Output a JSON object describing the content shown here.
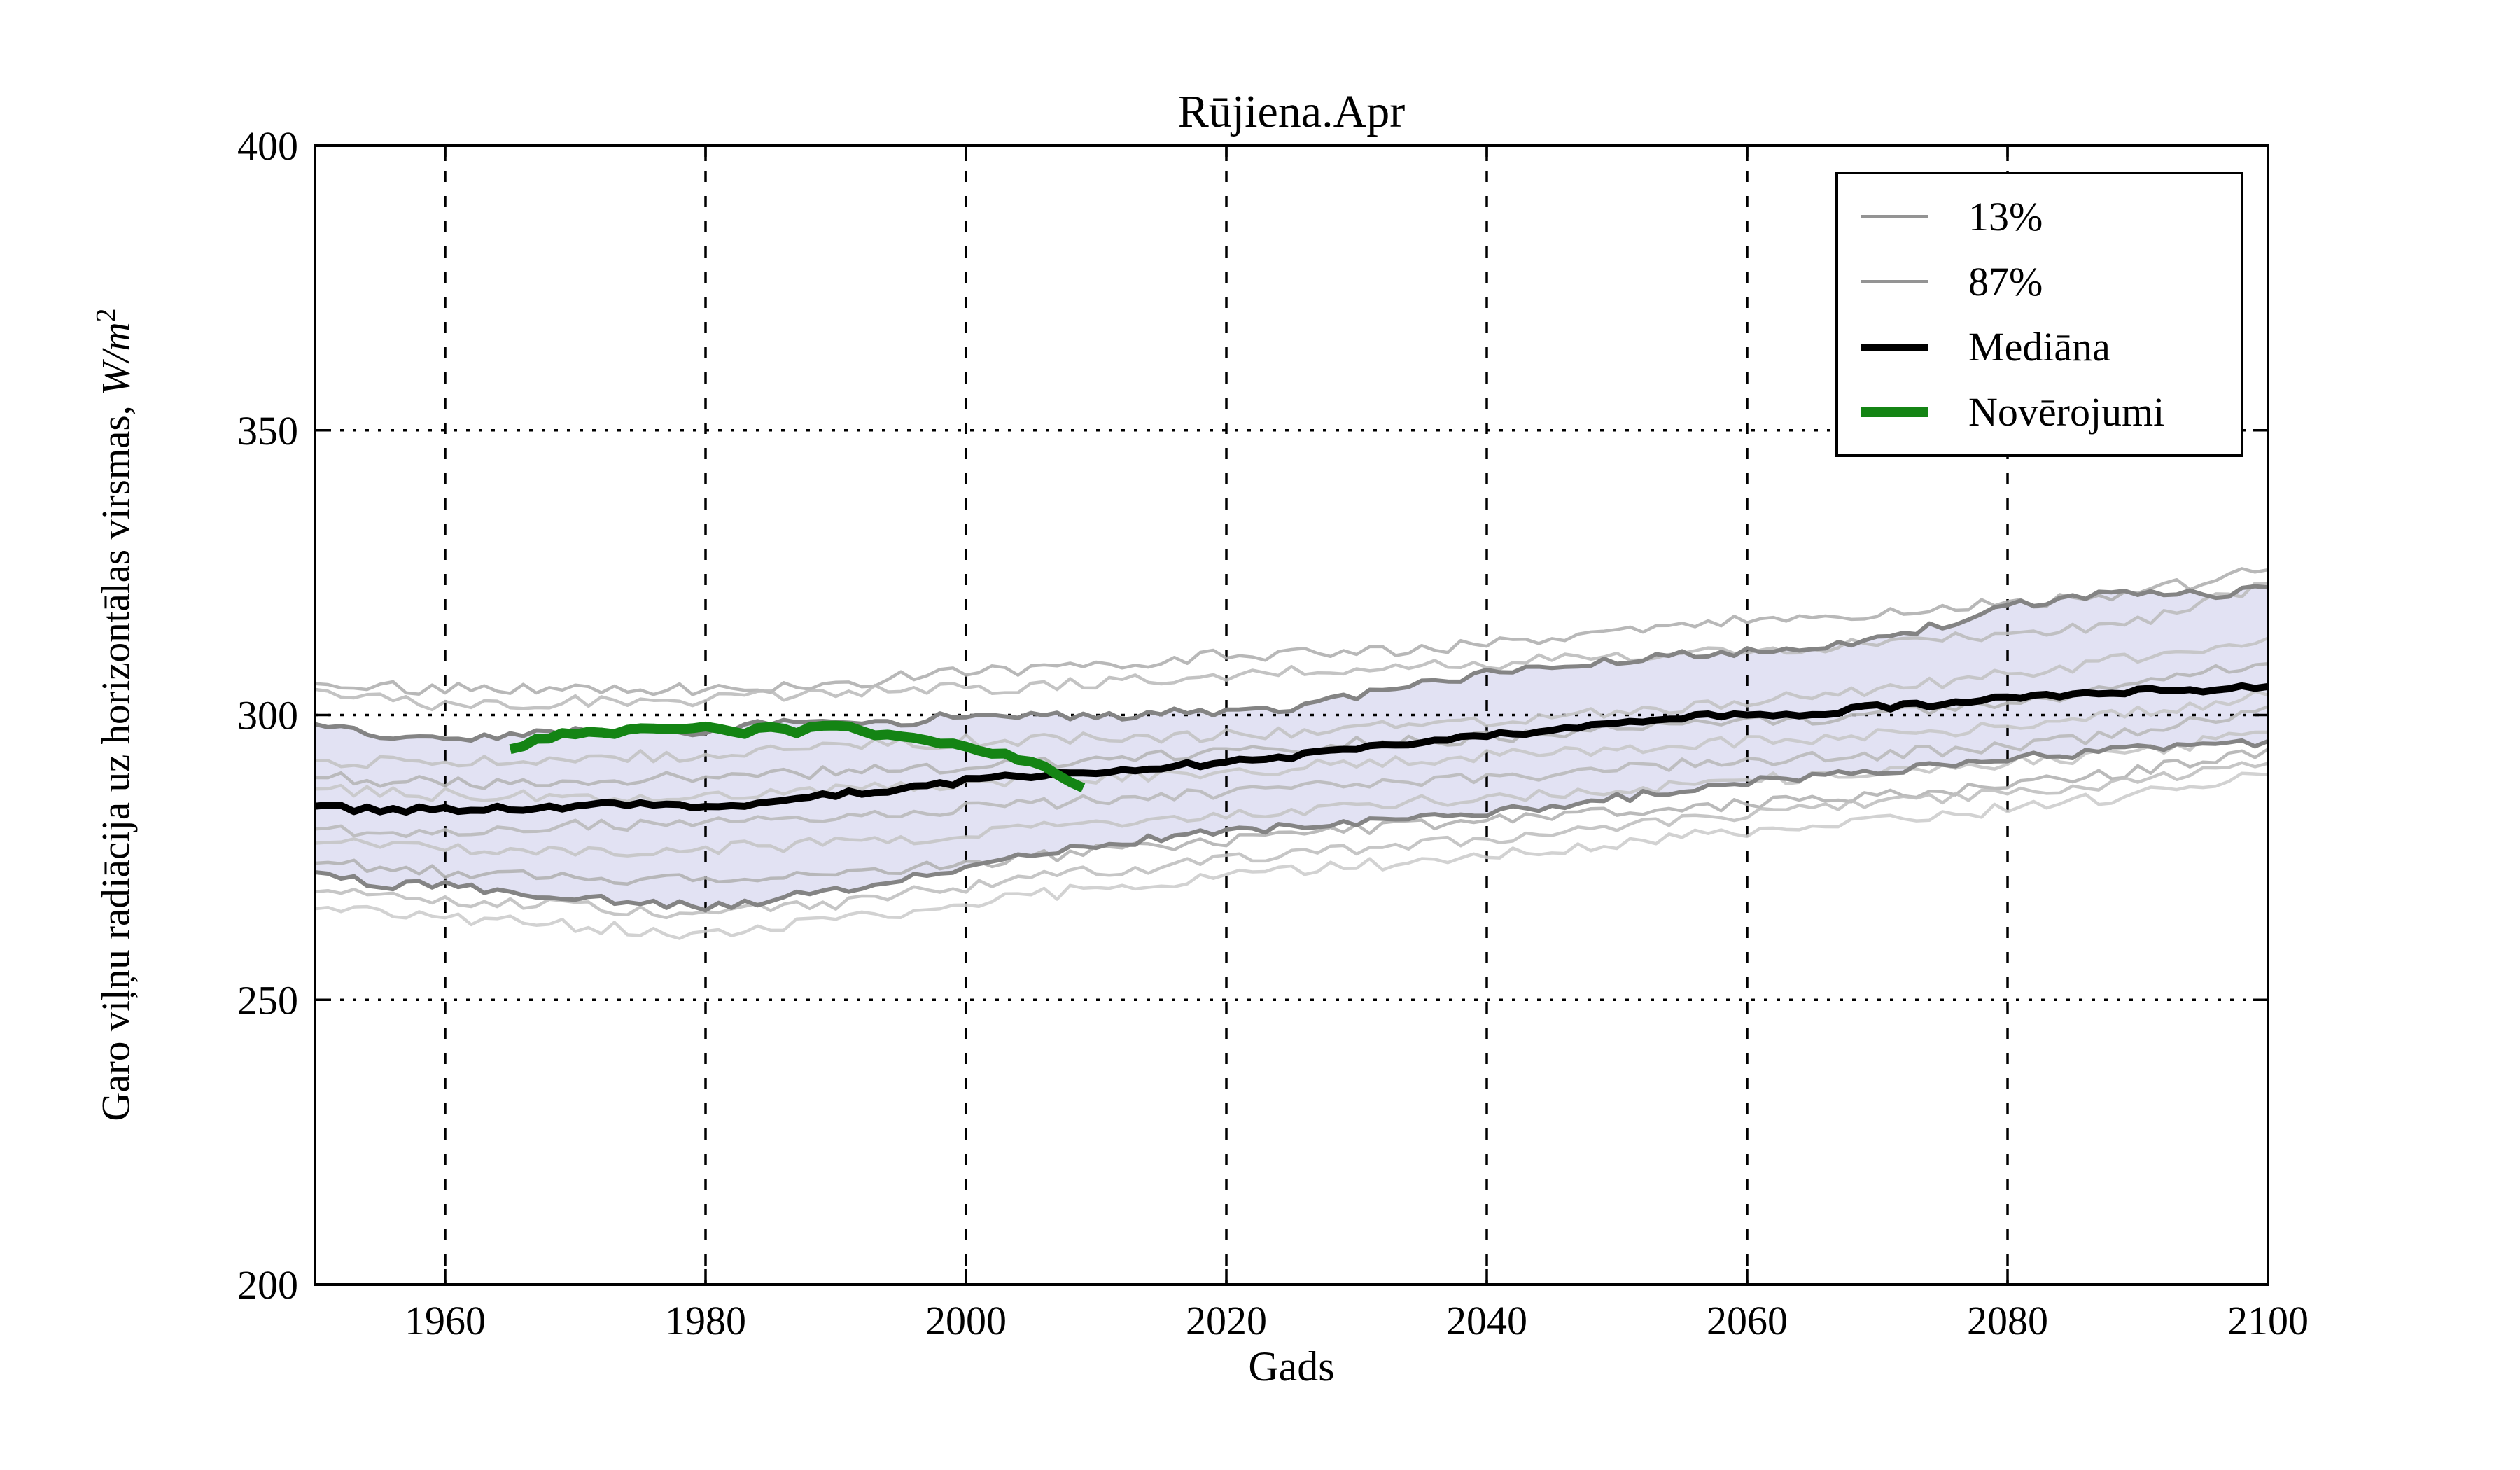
{
  "figure": {
    "title": "Rūjiena.Apr",
    "xlabel": "Gads",
    "ylabel": {
      "full": "Garo viļņu radiācija uz horizontālas virsmas, W/m²",
      "prefix": "Garo viļņu radiācija uz horizontālas virsmas, ",
      "unit": "W/m",
      "exponent": "2"
    }
  },
  "legend": {
    "position": "upper-right",
    "items": [
      {
        "key": "p13",
        "label": "13%",
        "color": "#949494",
        "sample_height": 5
      },
      {
        "key": "p87",
        "label": "87%",
        "color": "#949494",
        "sample_height": 5
      },
      {
        "key": "median",
        "label": "Mediāna",
        "color": "#000000",
        "sample_height": 10
      },
      {
        "key": "observations",
        "label": "Novērojumi",
        "color": "#148414",
        "sample_height": 14
      }
    ]
  },
  "chart_data": {
    "type": "line",
    "title": "Rūjiena.Apr",
    "xlabel": "Gads",
    "ylabel": "Garo viļņu radiācija uz horizontālas virsmas, W/m²",
    "xlim": [
      1950,
      2100
    ],
    "ylim": [
      200,
      400
    ],
    "xticks": [
      1960,
      1980,
      2000,
      2020,
      2040,
      2060,
      2080,
      2100
    ],
    "yticks": [
      200,
      250,
      300,
      350,
      400
    ],
    "xtick_labels": [
      "1960",
      "1980",
      "2000",
      "2020",
      "2040",
      "2060",
      "2080",
      "2100"
    ],
    "ytick_labels": [
      "200",
      "250",
      "300",
      "350",
      "400"
    ],
    "grid": true,
    "legend_position": "upper right",
    "band_fill_color": "#e2e2f3",
    "band_edge_color": "#848484",
    "grid_color": "#000000",
    "years": [
      1950,
      1955,
      1960,
      1965,
      1970,
      1975,
      1980,
      1985,
      1990,
      1995,
      2000,
      2005,
      2010,
      2015,
      2020,
      2025,
      2030,
      2035,
      2040,
      2045,
      2050,
      2055,
      2060,
      2065,
      2070,
      2075,
      2080,
      2085,
      2090,
      2095,
      2100
    ],
    "ensemble_years": [
      1950,
      1960,
      1970,
      1980,
      1990,
      2000,
      2010,
      2020,
      2030,
      2040,
      2050,
      2060,
      2070,
      2080,
      2090,
      2100
    ],
    "series": [
      {
        "name": "87%",
        "role": "band-upper",
        "color": "#848484",
        "width": 6,
        "jitter": 0.8,
        "seed": 101,
        "values": [
          298.4,
          296.2,
          295.6,
          296.4,
          297.0,
          297.4,
          297.2,
          298.8,
          299.4,
          298.6,
          300.4,
          300.0,
          299.6,
          300.4,
          300.2,
          301.4,
          303.4,
          305.4,
          307.4,
          308.0,
          309.4,
          310.4,
          311.0,
          312.0,
          313.4,
          316.0,
          319.0,
          321.0,
          321.6,
          321.0,
          322.4
        ]
      },
      {
        "name": "13%",
        "role": "band-lower",
        "color": "#848484",
        "width": 6,
        "jitter": 0.8,
        "seed": 202,
        "values": [
          272.4,
          270.0,
          270.4,
          269.0,
          268.0,
          267.4,
          266.0,
          267.4,
          269.4,
          271.0,
          273.4,
          275.4,
          277.0,
          278.4,
          279.4,
          280.4,
          281.0,
          282.0,
          283.0,
          284.0,
          285.4,
          287.0,
          288.4,
          289.0,
          290.0,
          291.0,
          292.4,
          293.0,
          294.0,
          294.4,
          295.4
        ]
      },
      {
        "name": "Mediāna",
        "role": "median",
        "color": "#000000",
        "width": 10,
        "jitter": 0.5,
        "seed": 303,
        "values": [
          284.0,
          283.2,
          283.5,
          283.6,
          284.0,
          284.4,
          284.0,
          284.6,
          286.0,
          287.0,
          288.4,
          289.4,
          290.0,
          291.0,
          291.6,
          292.6,
          294.0,
          295.0,
          296.4,
          297.4,
          298.4,
          299.4,
          300.4,
          300.0,
          301.4,
          302.0,
          303.0,
          303.4,
          304.4,
          304.4,
          305.0
        ]
      },
      {
        "name": "Novērojumi",
        "role": "observations",
        "color": "#148414",
        "width": 14,
        "jitter": 0.45,
        "seed": 404,
        "years": [
          1965,
          1967,
          1969,
          1971,
          1973,
          1975,
          1977,
          1979,
          1981,
          1983,
          1985,
          1987,
          1989,
          1991,
          1993,
          1995,
          1997,
          1999,
          2001,
          2003,
          2005,
          2007,
          2009
        ],
        "values": [
          294.0,
          295.8,
          296.6,
          297.0,
          297.0,
          297.4,
          297.3,
          297.9,
          297.2,
          297.0,
          297.6,
          297.2,
          298.3,
          298.4,
          296.6,
          296.2,
          295.6,
          294.6,
          293.6,
          293.0,
          291.6,
          289.8,
          287.2
        ]
      },
      {
        "name": "ensemble-1",
        "role": "ensemble",
        "color": "#b0b0b0",
        "width": 4.5,
        "jitter": 1.1,
        "seed": 11,
        "values": [
          305.5,
          304.5,
          305.0,
          304.5,
          305.5,
          307.5,
          308.5,
          310.5,
          311.0,
          312.5,
          314.5,
          316.5,
          318.0,
          319.5,
          321.5,
          325.5
        ]
      },
      {
        "name": "ensemble-2",
        "role": "ensemble",
        "color": "#bdbdbd",
        "width": 4.5,
        "jitter": 1.1,
        "seed": 12,
        "values": [
          304.5,
          301.5,
          302.5,
          302.5,
          304.0,
          304.5,
          305.5,
          307.0,
          308.0,
          309.0,
          310.5,
          311.5,
          312.5,
          314.0,
          316.5,
          323.0
        ]
      },
      {
        "name": "ensemble-3",
        "role": "ensemble",
        "color": "#c3c3c3",
        "width": 4.5,
        "jitter": 1.1,
        "seed": 13,
        "values": [
          292.0,
          291.5,
          292.5,
          293.0,
          294.5,
          295.5,
          296.0,
          296.5,
          297.5,
          299.0,
          300.5,
          302.5,
          304.5,
          307.0,
          310.0,
          313.5
        ]
      },
      {
        "name": "ensemble-4",
        "role": "ensemble",
        "color": "#b6b6b6",
        "width": 4.5,
        "jitter": 1.1,
        "seed": 14,
        "values": [
          289.0,
          288.0,
          288.5,
          289.0,
          290.0,
          291.0,
          292.0,
          293.5,
          295.0,
          296.0,
          297.5,
          298.5,
          300.0,
          302.0,
          305.5,
          309.0
        ]
      },
      {
        "name": "ensemble-5",
        "role": "ensemble",
        "color": "#c8c8c8",
        "width": 4.5,
        "jitter": 1.1,
        "seed": 15,
        "values": [
          287.0,
          286.0,
          285.5,
          286.0,
          287.0,
          288.0,
          289.0,
          290.0,
          291.5,
          293.0,
          294.0,
          295.5,
          296.5,
          298.0,
          300.5,
          303.5
        ]
      },
      {
        "name": "ensemble-6",
        "role": "ensemble",
        "color": "#bababa",
        "width": 4.5,
        "jitter": 1.1,
        "seed": 16,
        "values": [
          280.0,
          279.5,
          280.5,
          281.0,
          282.0,
          283.5,
          285.0,
          286.5,
          288.0,
          289.0,
          290.5,
          292.0,
          293.0,
          294.5,
          297.0,
          301.5
        ]
      },
      {
        "name": "ensemble-7",
        "role": "ensemble",
        "color": "#c5c5c5",
        "width": 4.5,
        "jitter": 1.1,
        "seed": 17,
        "values": [
          277.5,
          276.5,
          276.0,
          276.5,
          277.5,
          279.0,
          281.0,
          282.5,
          284.0,
          285.5,
          287.0,
          288.5,
          290.0,
          291.5,
          293.5,
          297.0
        ]
      },
      {
        "name": "ensemble-8",
        "role": "ensemble",
        "color": "#b3b3b3",
        "width": 4.5,
        "jitter": 1.1,
        "seed": 18,
        "values": [
          274.0,
          272.5,
          271.5,
          271.0,
          272.0,
          274.0,
          276.0,
          278.0,
          280.0,
          281.5,
          283.0,
          284.5,
          286.0,
          287.5,
          290.0,
          294.0
        ]
      },
      {
        "name": "ensemble-9",
        "role": "ensemble",
        "color": "#c0c0c0",
        "width": 4.5,
        "jitter": 1.1,
        "seed": 19,
        "values": [
          269.0,
          267.5,
          266.5,
          265.0,
          267.0,
          270.0,
          272.5,
          274.5,
          276.5,
          278.5,
          280.5,
          282.5,
          284.5,
          286.5,
          288.5,
          291.5
        ]
      },
      {
        "name": "ensemble-10",
        "role": "ensemble",
        "color": "#cdcdcd",
        "width": 4.5,
        "jitter": 1.1,
        "seed": 20,
        "values": [
          266.0,
          264.5,
          263.0,
          261.5,
          264.0,
          267.0,
          269.5,
          271.5,
          273.5,
          275.5,
          277.5,
          279.5,
          281.5,
          283.5,
          286.0,
          289.5
        ]
      }
    ]
  }
}
